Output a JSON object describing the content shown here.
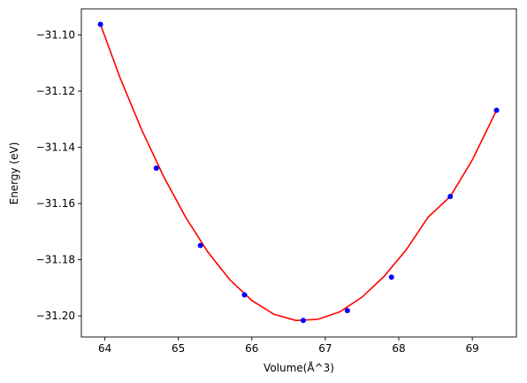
{
  "chart_data": {
    "type": "scatter",
    "title": "",
    "xlabel": "Volume(Å^3)",
    "ylabel": "Energy (eV)",
    "xlim": [
      63.68,
      69.6
    ],
    "ylim": [
      -31.2075,
      -31.0907
    ],
    "xticks": [
      64,
      65,
      66,
      67,
      68,
      69
    ],
    "xtick_labels": [
      "64",
      "65",
      "66",
      "67",
      "68",
      "69"
    ],
    "yticks": [
      -31.2,
      -31.18,
      -31.16,
      -31.14,
      -31.12,
      -31.1
    ],
    "ytick_labels": [
      "−31.20",
      "−31.18",
      "−31.16",
      "−31.14",
      "−31.12",
      "−31.10"
    ],
    "grid": false,
    "series": [
      {
        "kind": "points",
        "color": "#0000ff",
        "x": [
          63.94,
          64.7,
          65.3,
          65.9,
          66.7,
          67.3,
          67.9,
          68.7,
          69.33
        ],
        "y": [
          -31.0962,
          -31.1474,
          -31.1749,
          -31.1925,
          -31.2016,
          -31.1981,
          -31.1862,
          -31.1575,
          -31.1268
        ]
      },
      {
        "kind": "fit-curve",
        "color": "#ff0000",
        "x": [
          63.94,
          64.2,
          64.5,
          64.8,
          65.1,
          65.4,
          65.7,
          66.0,
          66.3,
          66.6,
          66.9,
          67.2,
          67.5,
          67.8,
          68.1,
          68.4,
          68.7,
          69.0,
          69.33
        ],
        "y": [
          -31.0962,
          -31.1148,
          -31.1337,
          -31.1504,
          -31.1649,
          -31.1772,
          -31.1871,
          -31.1945,
          -31.1994,
          -31.2016,
          -31.2012,
          -31.1985,
          -31.1933,
          -31.1859,
          -31.1765,
          -31.1648,
          -31.1575,
          -31.1445,
          -31.1268
        ]
      }
    ]
  }
}
